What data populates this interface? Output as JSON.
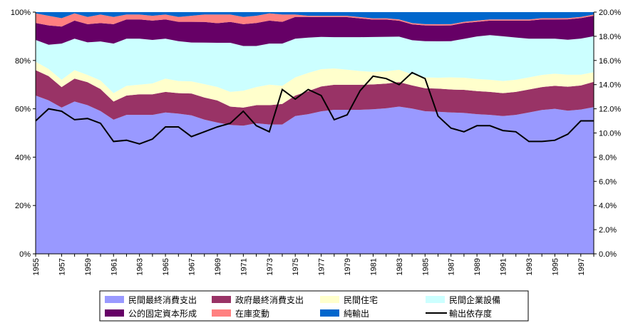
{
  "chart_data": {
    "type": "area",
    "x": [
      1955,
      1956,
      1957,
      1958,
      1959,
      1960,
      1961,
      1962,
      1963,
      1964,
      1965,
      1966,
      1967,
      1968,
      1969,
      1970,
      1971,
      1972,
      1973,
      1974,
      1975,
      1976,
      1977,
      1978,
      1979,
      1980,
      1981,
      1982,
      1983,
      1984,
      1985,
      1986,
      1987,
      1988,
      1989,
      1990,
      1991,
      1992,
      1993,
      1994,
      1995,
      1996,
      1997,
      1998
    ],
    "x_tick_labels": [
      "1955",
      "1957",
      "1959",
      "1961",
      "1963",
      "1965",
      "1967",
      "1969",
      "1971",
      "1973",
      "1975",
      "1977",
      "1979",
      "1981",
      "1983",
      "1985",
      "1987",
      "1989",
      "1991",
      "1993",
      "1995",
      "1997"
    ],
    "y_left_ticks": [
      "0%",
      "20%",
      "40%",
      "60%",
      "80%",
      "100%"
    ],
    "y_right_ticks": [
      "0.0%",
      "2.0%",
      "4.0%",
      "6.0%",
      "8.0%",
      "10.0%",
      "12.0%",
      "14.0%",
      "16.0%",
      "18.0%",
      "20.0%"
    ],
    "ylim_left": [
      0,
      100
    ],
    "ylim_right": [
      0,
      20
    ],
    "stacked_series": [
      {
        "name": "民間最終消費支出",
        "color": "#9999ff",
        "values": [
          65.5,
          63.5,
          60.5,
          63,
          61.5,
          58.5,
          55.5,
          57.5,
          57.5,
          57.5,
          58.5,
          58,
          57,
          55,
          53.5,
          52.5,
          53,
          54,
          53.5,
          53.5,
          57,
          57.5,
          57.5,
          57.5,
          57.5,
          57.5,
          58,
          59,
          60,
          59.5,
          59,
          58.5,
          58.5,
          58,
          57.5,
          57.5,
          57,
          57.5,
          58.5,
          59.5,
          60,
          59.5,
          60,
          61
        ]
      },
      {
        "name": "政府最終消費支出",
        "color": "#993366",
        "values": [
          10.5,
          10,
          8.5,
          9.5,
          9.5,
          9,
          7.5,
          8,
          8.5,
          8.5,
          8.5,
          8.5,
          9,
          9,
          9,
          7.5,
          7.5,
          7.5,
          8,
          8.5,
          8.5,
          9.5,
          10,
          10,
          10,
          10,
          10,
          10,
          10,
          9.5,
          9.5,
          9.5,
          9.5,
          9.5,
          9.5,
          9.5,
          9.5,
          9.5,
          9.5,
          9.5,
          9.5,
          10,
          10,
          10.5
        ]
      },
      {
        "name": "民間住宅",
        "color": "#ffffcc",
        "values": [
          3.5,
          3,
          3,
          3.5,
          3,
          3.5,
          3.5,
          4,
          4,
          4.5,
          5.5,
          5,
          5,
          5.5,
          5.5,
          6,
          7,
          7.5,
          8.5,
          7.5,
          7.5,
          7.5,
          7,
          6.5,
          6,
          5.5,
          5,
          5,
          5,
          4.5,
          4.5,
          4.5,
          5,
          5,
          5,
          5,
          5,
          5,
          5,
          5,
          5,
          5,
          4.5,
          4
        ]
      },
      {
        "name": "民間企業設備",
        "color": "#ccffff",
        "values": [
          9,
          10,
          15,
          13,
          13.5,
          16,
          20.5,
          19.5,
          19,
          18,
          16.5,
          16.5,
          16,
          17,
          18,
          20,
          18.5,
          17,
          17,
          17.5,
          16,
          14.5,
          13,
          12.5,
          13,
          13.5,
          14,
          14,
          13.5,
          14,
          15,
          15,
          15,
          16,
          17.5,
          18.5,
          18.5,
          17.5,
          16,
          15,
          14.5,
          14.5,
          15,
          15
        ]
      },
      {
        "name": "公的固定資本形成",
        "color": "#660066",
        "values": [
          7,
          8,
          7,
          7.5,
          7.5,
          7.5,
          8,
          8,
          8,
          8,
          8,
          8,
          8.5,
          8.5,
          8,
          8.5,
          9,
          9.5,
          9.5,
          9,
          9,
          8.5,
          8,
          8,
          8,
          7.5,
          7,
          7,
          6.5,
          6.5,
          6.5,
          6.5,
          6.5,
          6.5,
          6,
          6,
          6.5,
          7,
          7.5,
          8,
          8,
          8.5,
          8.5,
          8.5
        ]
      },
      {
        "name": "在庫変動",
        "color": "#ff8080",
        "values": [
          4,
          4,
          3.5,
          3,
          3,
          3.5,
          3,
          2,
          2,
          2,
          2,
          2,
          2.5,
          3,
          3.5,
          3,
          3,
          3,
          3,
          3,
          1,
          0.5,
          0.5,
          0.5,
          0.5,
          0.5,
          0.5,
          0.5,
          0.5,
          0.5,
          0.5,
          0.5,
          0.5,
          0.5,
          0.5,
          0.5,
          0.5,
          0.5,
          0.5,
          0.5,
          0.5,
          0.5,
          0.5,
          0.5
        ]
      },
      {
        "name": "純輸出",
        "color": "#0066cc",
        "values": [
          0.5,
          1.5,
          2.5,
          0.5,
          2,
          1,
          2,
          1,
          1,
          1.5,
          1,
          2,
          1.5,
          1,
          1,
          1,
          2,
          1.5,
          0.5,
          1,
          1,
          1.5,
          1.5,
          1.5,
          1.5,
          2,
          2.5,
          2.5,
          3,
          4.5,
          5,
          5,
          5,
          4,
          3.5,
          3,
          3,
          3,
          3,
          2.5,
          2.5,
          2.5,
          2,
          1
        ]
      }
    ],
    "line_series": {
      "name": "輸出依存度",
      "color": "#000000",
      "axis": "right",
      "values": [
        11,
        12,
        11.8,
        11.1,
        11.2,
        10.8,
        9.3,
        9.4,
        9.1,
        9.5,
        10.5,
        10.5,
        9.7,
        10.1,
        10.5,
        10.8,
        11.8,
        10.6,
        10.1,
        13.6,
        12.8,
        13.6,
        13.1,
        11.1,
        11.5,
        13.5,
        14.7,
        14.5,
        14,
        15,
        14.5,
        11.4,
        10.4,
        10.1,
        10.6,
        10.6,
        10.2,
        10.1,
        9.3,
        9.3,
        9.4,
        9.9,
        11,
        11
      ]
    },
    "legend_placement": "bottom",
    "grid": false
  }
}
